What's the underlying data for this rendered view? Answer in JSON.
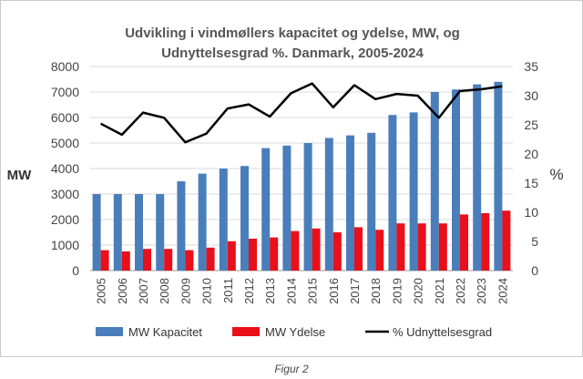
{
  "caption": "Figur 2",
  "chart_data": {
    "type": "bar",
    "title_line1": "Udvikling i vindmøllers kapacitet og ydelse, MW, og",
    "title_line2": "Udnyttelsesgrad %. Danmark, 2005-2024",
    "ylabel": "MW",
    "y2label": "%",
    "ylim": [
      0,
      8000
    ],
    "y2lim": [
      0,
      35
    ],
    "yticks": [
      0,
      1000,
      2000,
      3000,
      4000,
      5000,
      6000,
      7000,
      8000
    ],
    "y2ticks": [
      0,
      5,
      10,
      15,
      20,
      25,
      30,
      35
    ],
    "grid": true,
    "legend_position": "bottom",
    "categories": [
      "2005",
      "2006",
      "2007",
      "2008",
      "2009",
      "2010",
      "2011",
      "2012",
      "2013",
      "2014",
      "2015",
      "2016",
      "2017",
      "2018",
      "2019",
      "2020",
      "2021",
      "2022",
      "2023",
      "2024"
    ],
    "series": [
      {
        "name": "MW Kapacitet",
        "type": "bar",
        "axis": "left",
        "color": "#4a7ebb",
        "values": [
          3000,
          3000,
          3000,
          3000,
          3500,
          3800,
          4000,
          4100,
          4800,
          4900,
          5000,
          5200,
          5300,
          5400,
          6100,
          6200,
          7000,
          7100,
          7300,
          7400
        ]
      },
      {
        "name": "MW Ydelse",
        "type": "bar",
        "axis": "left",
        "color": "#e8101a",
        "values": [
          800,
          750,
          850,
          850,
          800,
          900,
          1150,
          1250,
          1300,
          1550,
          1650,
          1500,
          1700,
          1600,
          1850,
          1850,
          1850,
          2200,
          2250,
          2350
        ]
      },
      {
        "name": "% Udnyttelsesgrad",
        "type": "line",
        "axis": "right",
        "color": "#000000",
        "values": [
          25.2,
          23.3,
          27.1,
          26.2,
          22.0,
          23.5,
          27.8,
          28.5,
          26.4,
          30.4,
          32.1,
          28.0,
          31.8,
          29.4,
          30.3,
          30.0,
          26.2,
          30.8,
          31.1,
          31.6
        ]
      }
    ]
  }
}
